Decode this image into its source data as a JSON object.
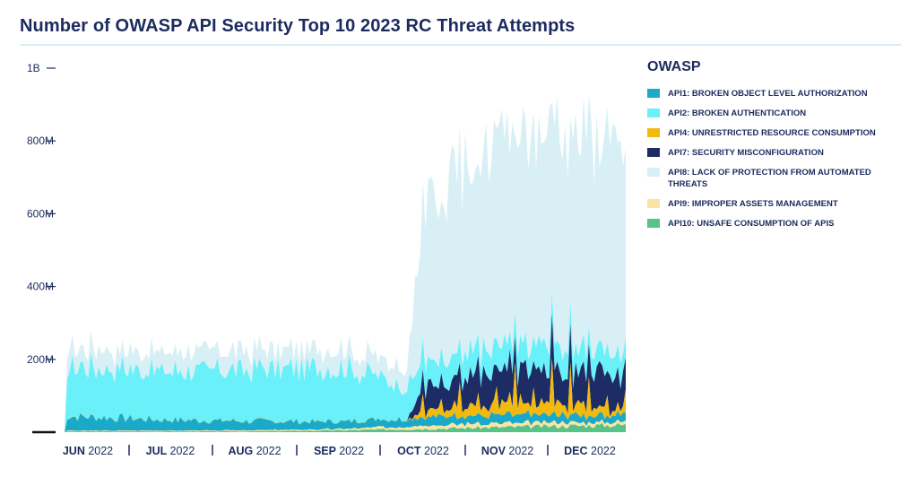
{
  "page": {
    "title": "Number of OWASP API Security Top 10 2023 RC Threat Attempts"
  },
  "legend": {
    "title": "OWASP",
    "items": [
      {
        "key": "api1",
        "label": "API1: BROKEN OBJECT LEVEL AUTHORIZATION",
        "color": "#1aa9c9"
      },
      {
        "key": "api2",
        "label": "API2: BROKEN AUTHENTICATION",
        "color": "#69f0f9"
      },
      {
        "key": "api4",
        "label": "API4: UNRESTRICTED RESOURCE CONSUMPTION",
        "color": "#f2b90f"
      },
      {
        "key": "api7",
        "label": "API7: SECURITY MISCONFIGURATION",
        "color": "#1d2c64"
      },
      {
        "key": "api8",
        "label": "API8: LACK OF PROTECTION FROM AUTOMATED THREATS",
        "color": "#d8f0f5"
      },
      {
        "key": "api9",
        "label": "API9: IMPROPER ASSETS MANAGEMENT",
        "color": "#fbe4a3"
      },
      {
        "key": "api10",
        "label": "API10: UNSAFE CONSUMPTION OF APIS",
        "color": "#57c388"
      }
    ]
  },
  "chart_data": {
    "type": "area",
    "stacked": true,
    "title": "Number of OWASP API Security Top 10 2023 RC Threat Attempts",
    "xlabel": "",
    "ylabel": "",
    "ylim": [
      0,
      1000000000
    ],
    "yticks": [
      {
        "value": 200000000,
        "label": "200M"
      },
      {
        "value": 400000000,
        "label": "400M"
      },
      {
        "value": 600000000,
        "label": "600M"
      },
      {
        "value": 800000000,
        "label": "800M"
      },
      {
        "value": 1000000000,
        "label": "1B"
      }
    ],
    "xticks": [
      {
        "month": "JUN",
        "year": "2022"
      },
      {
        "month": "JUL",
        "year": "2022"
      },
      {
        "month": "AUG",
        "year": "2022"
      },
      {
        "month": "SEP",
        "year": "2022"
      },
      {
        "month": "OCT",
        "year": "2022"
      },
      {
        "month": "NOV",
        "year": "2022"
      },
      {
        "month": "DEC",
        "year": "2022"
      }
    ],
    "x": [
      "Jun 2022",
      "Jul 2022",
      "Aug 2022",
      "Sep 2022",
      "Oct 2022",
      "Nov 2022",
      "Dec 2022"
    ],
    "series_monthly_estimate": [
      {
        "name": "API1: BROKEN OBJECT LEVEL AUTHORIZATION",
        "values": [
          40000000,
          30000000,
          25000000,
          20000000,
          25000000,
          20000000,
          20000000
        ]
      },
      {
        "name": "API2: BROKEN AUTHENTICATION",
        "values": [
          140000000,
          135000000,
          140000000,
          150000000,
          60000000,
          70000000,
          60000000
        ]
      },
      {
        "name": "API4: UNRESTRICTED RESOURCE CONSUMPTION",
        "values": [
          0,
          0,
          0,
          3000000,
          15000000,
          40000000,
          20000000
        ]
      },
      {
        "name": "API7: SECURITY MISCONFIGURATION",
        "values": [
          0,
          0,
          0,
          0,
          70000000,
          90000000,
          90000000
        ]
      },
      {
        "name": "API8: LACK OF PROTECTION FROM AUTOMATED THREATS",
        "values": [
          50000000,
          45000000,
          55000000,
          60000000,
          430000000,
          600000000,
          560000000
        ]
      },
      {
        "name": "API9: IMPROPER ASSETS MANAGEMENT",
        "values": [
          2000000,
          2000000,
          3000000,
          4000000,
          10000000,
          10000000,
          8000000
        ]
      },
      {
        "name": "API10: UNSAFE CONSUMPTION OF APIS",
        "values": [
          2000000,
          2000000,
          2000000,
          5000000,
          10000000,
          15000000,
          20000000
        ]
      }
    ],
    "legend_position": "right",
    "grid": false
  }
}
